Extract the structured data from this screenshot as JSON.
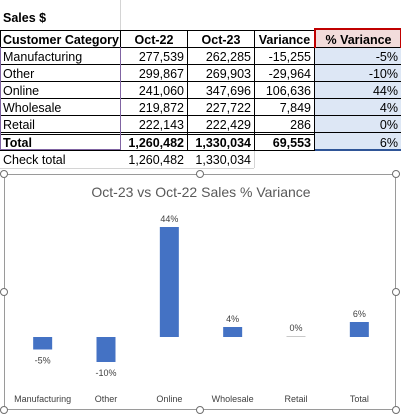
{
  "sheet": {
    "title": "Sales $",
    "headers": {
      "category": "Customer Category",
      "oct22": "Oct-22",
      "oct23": "Oct-23",
      "variance": "Variance",
      "pct_variance": "% Variance"
    },
    "rows": [
      {
        "category": "Manufacturing",
        "oct22": "277,539",
        "oct23": "262,285",
        "variance": "-15,255",
        "pct": "-5%"
      },
      {
        "category": "Other",
        "oct22": "299,867",
        "oct23": "269,903",
        "variance": "-29,964",
        "pct": "-10%"
      },
      {
        "category": "Online",
        "oct22": "241,060",
        "oct23": "347,696",
        "variance": "106,636",
        "pct": "44%"
      },
      {
        "category": "Wholesale",
        "oct22": "219,872",
        "oct23": "227,722",
        "variance": "7,849",
        "pct": "4%"
      },
      {
        "category": "Retail",
        "oct22": "222,143",
        "oct23": "222,429",
        "variance": "286",
        "pct": "0%"
      }
    ],
    "total": {
      "category": "Total",
      "oct22": "1,260,482",
      "oct23": "1,330,034",
      "variance": "69,553",
      "pct": "6%"
    },
    "check": {
      "category": "Check total",
      "oct22": "1,260,482",
      "oct23": "1,330,034"
    }
  },
  "chart_data": {
    "type": "bar",
    "title": "Oct-23 vs Oct-22 Sales % Variance",
    "categories": [
      "Manufacturing",
      "Other",
      "Online",
      "Wholesale",
      "Retail",
      "Total"
    ],
    "values": [
      -5,
      -10,
      44,
      4,
      0,
      6
    ],
    "data_labels": [
      "-5%",
      "-10%",
      "44%",
      "4%",
      "0%",
      "6%"
    ],
    "xlabel": "",
    "ylabel": "",
    "ylim": [
      -10,
      44
    ],
    "grid": false,
    "color": "#4472c4"
  },
  "colors": {
    "bar": "#4472c4",
    "selection_red": "#c00000",
    "selection_fill": "#f2dcdb",
    "selected_range_fill": "#dde7f5",
    "title_text": "#595959",
    "label_text": "#404040"
  }
}
